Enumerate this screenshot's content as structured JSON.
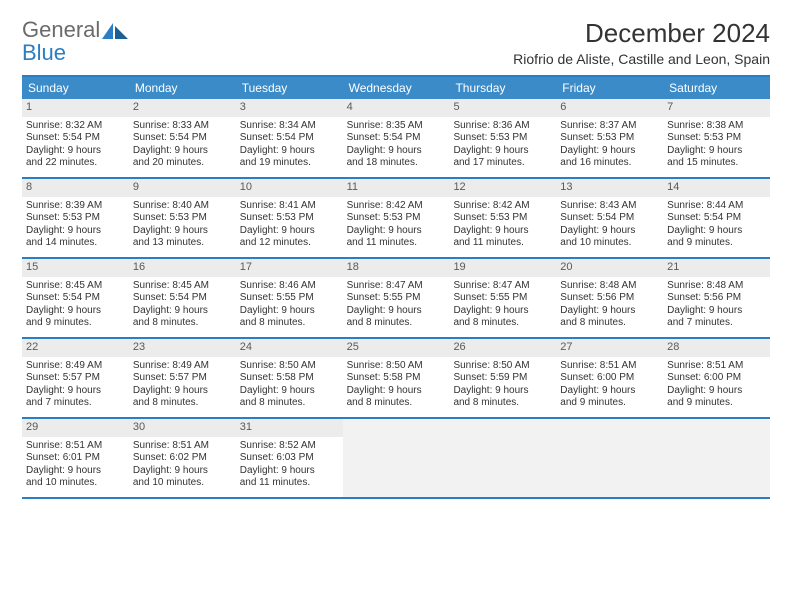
{
  "brand": {
    "name_part1": "General",
    "name_part2": "Blue",
    "logo_color": "#2a7ec3"
  },
  "title": "December 2024",
  "location": "Riofrio de Aliste, Castille and Leon, Spain",
  "colors": {
    "header_bg": "#3b8bc9",
    "rule": "#2a7ec3",
    "daynum_bg": "#ececec",
    "empty_bg": "#f2f2f2",
    "text": "#333333"
  },
  "day_names": [
    "Sunday",
    "Monday",
    "Tuesday",
    "Wednesday",
    "Thursday",
    "Friday",
    "Saturday"
  ],
  "weeks": [
    [
      {
        "n": "1",
        "sr": "Sunrise: 8:32 AM",
        "ss": "Sunset: 5:54 PM",
        "d1": "Daylight: 9 hours",
        "d2": "and 22 minutes."
      },
      {
        "n": "2",
        "sr": "Sunrise: 8:33 AM",
        "ss": "Sunset: 5:54 PM",
        "d1": "Daylight: 9 hours",
        "d2": "and 20 minutes."
      },
      {
        "n": "3",
        "sr": "Sunrise: 8:34 AM",
        "ss": "Sunset: 5:54 PM",
        "d1": "Daylight: 9 hours",
        "d2": "and 19 minutes."
      },
      {
        "n": "4",
        "sr": "Sunrise: 8:35 AM",
        "ss": "Sunset: 5:54 PM",
        "d1": "Daylight: 9 hours",
        "d2": "and 18 minutes."
      },
      {
        "n": "5",
        "sr": "Sunrise: 8:36 AM",
        "ss": "Sunset: 5:53 PM",
        "d1": "Daylight: 9 hours",
        "d2": "and 17 minutes."
      },
      {
        "n": "6",
        "sr": "Sunrise: 8:37 AM",
        "ss": "Sunset: 5:53 PM",
        "d1": "Daylight: 9 hours",
        "d2": "and 16 minutes."
      },
      {
        "n": "7",
        "sr": "Sunrise: 8:38 AM",
        "ss": "Sunset: 5:53 PM",
        "d1": "Daylight: 9 hours",
        "d2": "and 15 minutes."
      }
    ],
    [
      {
        "n": "8",
        "sr": "Sunrise: 8:39 AM",
        "ss": "Sunset: 5:53 PM",
        "d1": "Daylight: 9 hours",
        "d2": "and 14 minutes."
      },
      {
        "n": "9",
        "sr": "Sunrise: 8:40 AM",
        "ss": "Sunset: 5:53 PM",
        "d1": "Daylight: 9 hours",
        "d2": "and 13 minutes."
      },
      {
        "n": "10",
        "sr": "Sunrise: 8:41 AM",
        "ss": "Sunset: 5:53 PM",
        "d1": "Daylight: 9 hours",
        "d2": "and 12 minutes."
      },
      {
        "n": "11",
        "sr": "Sunrise: 8:42 AM",
        "ss": "Sunset: 5:53 PM",
        "d1": "Daylight: 9 hours",
        "d2": "and 11 minutes."
      },
      {
        "n": "12",
        "sr": "Sunrise: 8:42 AM",
        "ss": "Sunset: 5:53 PM",
        "d1": "Daylight: 9 hours",
        "d2": "and 11 minutes."
      },
      {
        "n": "13",
        "sr": "Sunrise: 8:43 AM",
        "ss": "Sunset: 5:54 PM",
        "d1": "Daylight: 9 hours",
        "d2": "and 10 minutes."
      },
      {
        "n": "14",
        "sr": "Sunrise: 8:44 AM",
        "ss": "Sunset: 5:54 PM",
        "d1": "Daylight: 9 hours",
        "d2": "and 9 minutes."
      }
    ],
    [
      {
        "n": "15",
        "sr": "Sunrise: 8:45 AM",
        "ss": "Sunset: 5:54 PM",
        "d1": "Daylight: 9 hours",
        "d2": "and 9 minutes."
      },
      {
        "n": "16",
        "sr": "Sunrise: 8:45 AM",
        "ss": "Sunset: 5:54 PM",
        "d1": "Daylight: 9 hours",
        "d2": "and 8 minutes."
      },
      {
        "n": "17",
        "sr": "Sunrise: 8:46 AM",
        "ss": "Sunset: 5:55 PM",
        "d1": "Daylight: 9 hours",
        "d2": "and 8 minutes."
      },
      {
        "n": "18",
        "sr": "Sunrise: 8:47 AM",
        "ss": "Sunset: 5:55 PM",
        "d1": "Daylight: 9 hours",
        "d2": "and 8 minutes."
      },
      {
        "n": "19",
        "sr": "Sunrise: 8:47 AM",
        "ss": "Sunset: 5:55 PM",
        "d1": "Daylight: 9 hours",
        "d2": "and 8 minutes."
      },
      {
        "n": "20",
        "sr": "Sunrise: 8:48 AM",
        "ss": "Sunset: 5:56 PM",
        "d1": "Daylight: 9 hours",
        "d2": "and 8 minutes."
      },
      {
        "n": "21",
        "sr": "Sunrise: 8:48 AM",
        "ss": "Sunset: 5:56 PM",
        "d1": "Daylight: 9 hours",
        "d2": "and 7 minutes."
      }
    ],
    [
      {
        "n": "22",
        "sr": "Sunrise: 8:49 AM",
        "ss": "Sunset: 5:57 PM",
        "d1": "Daylight: 9 hours",
        "d2": "and 7 minutes."
      },
      {
        "n": "23",
        "sr": "Sunrise: 8:49 AM",
        "ss": "Sunset: 5:57 PM",
        "d1": "Daylight: 9 hours",
        "d2": "and 8 minutes."
      },
      {
        "n": "24",
        "sr": "Sunrise: 8:50 AM",
        "ss": "Sunset: 5:58 PM",
        "d1": "Daylight: 9 hours",
        "d2": "and 8 minutes."
      },
      {
        "n": "25",
        "sr": "Sunrise: 8:50 AM",
        "ss": "Sunset: 5:58 PM",
        "d1": "Daylight: 9 hours",
        "d2": "and 8 minutes."
      },
      {
        "n": "26",
        "sr": "Sunrise: 8:50 AM",
        "ss": "Sunset: 5:59 PM",
        "d1": "Daylight: 9 hours",
        "d2": "and 8 minutes."
      },
      {
        "n": "27",
        "sr": "Sunrise: 8:51 AM",
        "ss": "Sunset: 6:00 PM",
        "d1": "Daylight: 9 hours",
        "d2": "and 9 minutes."
      },
      {
        "n": "28",
        "sr": "Sunrise: 8:51 AM",
        "ss": "Sunset: 6:00 PM",
        "d1": "Daylight: 9 hours",
        "d2": "and 9 minutes."
      }
    ],
    [
      {
        "n": "29",
        "sr": "Sunrise: 8:51 AM",
        "ss": "Sunset: 6:01 PM",
        "d1": "Daylight: 9 hours",
        "d2": "and 10 minutes."
      },
      {
        "n": "30",
        "sr": "Sunrise: 8:51 AM",
        "ss": "Sunset: 6:02 PM",
        "d1": "Daylight: 9 hours",
        "d2": "and 10 minutes."
      },
      {
        "n": "31",
        "sr": "Sunrise: 8:52 AM",
        "ss": "Sunset: 6:03 PM",
        "d1": "Daylight: 9 hours",
        "d2": "and 11 minutes."
      },
      null,
      null,
      null,
      null
    ]
  ]
}
